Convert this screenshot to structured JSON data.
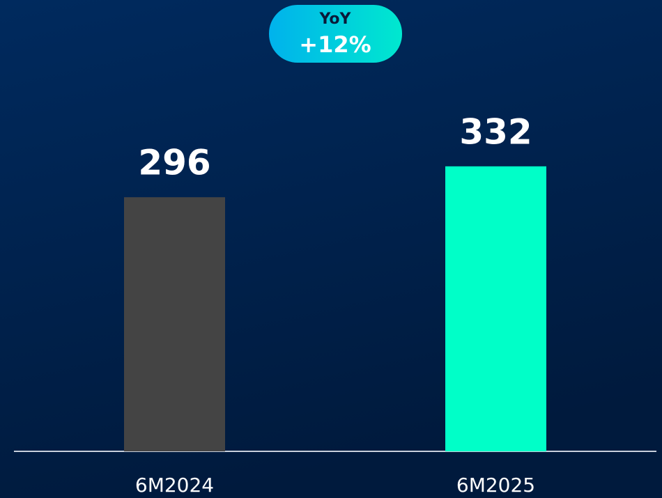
{
  "chart_data": {
    "type": "bar",
    "annotation": {
      "title": "YoY",
      "text": "+12%"
    },
    "categories": [
      "6M2024",
      "6M2025"
    ],
    "values": [
      296,
      332
    ],
    "colors": [
      "#444444",
      "#00ffc8"
    ],
    "ylim": [
      0,
      400
    ]
  }
}
